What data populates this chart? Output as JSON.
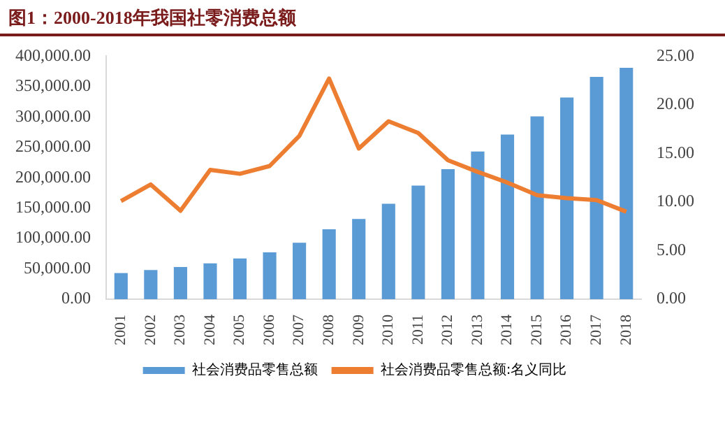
{
  "chart_data": {
    "type": "bar",
    "title": "图1：2000-2018年我国社零消费总额",
    "categories": [
      "2001",
      "2002",
      "2003",
      "2004",
      "2005",
      "2006",
      "2007",
      "2008",
      "2009",
      "2010",
      "2011",
      "2012",
      "2013",
      "2014",
      "2015",
      "2016",
      "2017",
      "2018"
    ],
    "series": [
      {
        "name": "社会消费品零售总额",
        "color": "#5b9bd5",
        "values": [
          43000,
          48000,
          53000,
          59000,
          67000,
          77000,
          93000,
          115000,
          132000,
          157000,
          187000,
          214000,
          243000,
          271000,
          301000,
          332000,
          366000,
          381000
        ]
      },
      {
        "name": "社会消费品零售总额:名义同比",
        "type": "line",
        "axis": "y2",
        "color": "#ed7d31",
        "values": [
          10.1,
          11.8,
          9.1,
          13.3,
          12.9,
          13.7,
          16.8,
          22.7,
          15.5,
          18.3,
          17.1,
          14.3,
          13.1,
          12.0,
          10.7,
          10.4,
          10.2,
          9.0
        ]
      }
    ],
    "ylim": [
      0,
      400000
    ],
    "yticks": [
      {
        "value": 0,
        "label": "0.00"
      },
      {
        "value": 50000,
        "label": "50,000.00"
      },
      {
        "value": 100000,
        "label": "100,000.00"
      },
      {
        "value": 150000,
        "label": "150,000.00"
      },
      {
        "value": 200000,
        "label": "200,000.00"
      },
      {
        "value": 250000,
        "label": "250,000.00"
      },
      {
        "value": 300000,
        "label": "300,000.00"
      },
      {
        "value": 350000,
        "label": "350,000.00"
      },
      {
        "value": 400000,
        "label": "400,000.00"
      }
    ],
    "y2lim": [
      0,
      25
    ],
    "y2ticks": [
      {
        "value": 0,
        "label": "0.00"
      },
      {
        "value": 5,
        "label": "5.00"
      },
      {
        "value": 10,
        "label": "10.00"
      },
      {
        "value": 15,
        "label": "15.00"
      },
      {
        "value": 20,
        "label": "20.00"
      },
      {
        "value": 25,
        "label": "25.00"
      }
    ],
    "legend": "bottom",
    "grid": false,
    "marker": "none"
  }
}
